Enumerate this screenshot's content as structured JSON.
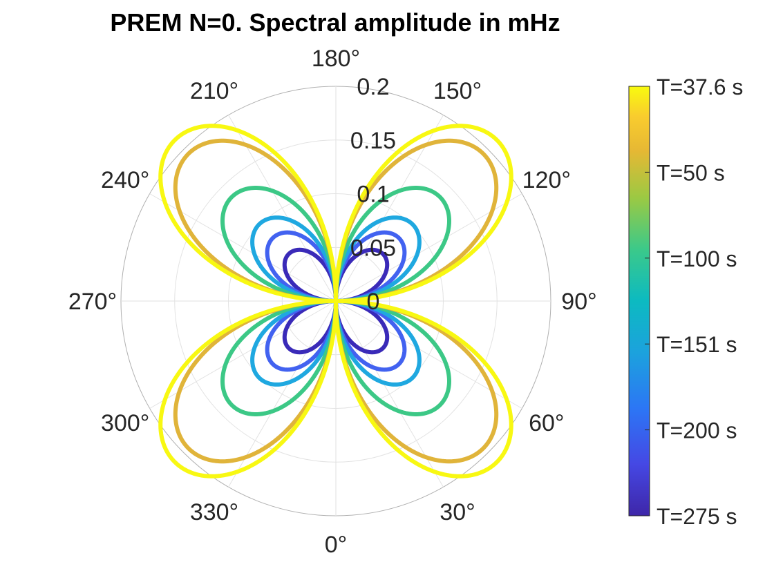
{
  "chart_data": {
    "type": "polar-line",
    "title": "PREM N=0. Spectral amplitude in mHz",
    "theta_direction": "counterclockwise",
    "theta_zero_location": "bottom",
    "theta_ticks": [
      0,
      30,
      60,
      90,
      120,
      150,
      180,
      210,
      240,
      270,
      300,
      330
    ],
    "theta_tick_labels": [
      "0°",
      "30°",
      "60°",
      "90°",
      "120°",
      "150°",
      "180°",
      "210°",
      "240°",
      "270°",
      "300°",
      "330°"
    ],
    "r_lim": [
      0,
      0.2
    ],
    "r_ticks": [
      0,
      0.05,
      0.1,
      0.15,
      0.2
    ],
    "r_tick_labels": [
      "0",
      "0.05",
      "0.1",
      "0.15",
      "0.2"
    ],
    "grid": true,
    "pattern": "amplitude * |sin(2θ)|",
    "series": [
      {
        "name": "T=275 s",
        "period_s": 275,
        "amplitude": 0.062,
        "color": "#3a2ab8"
      },
      {
        "name": "T=200 s",
        "period_s": 200,
        "amplitude": 0.083,
        "color": "#4262f0"
      },
      {
        "name": "T=151 s",
        "period_s": 151,
        "amplitude": 0.101,
        "color": "#1fa8e0"
      },
      {
        "name": "T=100 s",
        "period_s": 100,
        "amplitude": 0.137,
        "color": "#3cc886"
      },
      {
        "name": "T=50 s",
        "period_s": 50,
        "amplitude": 0.194,
        "color": "#e0b43a"
      },
      {
        "name": "T=37.6 s",
        "period_s": 37.6,
        "amplitude": 0.212,
        "color": "#f8f812"
      }
    ],
    "colorbar": {
      "location": "right",
      "tick_labels": [
        "T=37.6 s",
        "T=50 s",
        "T=100 s",
        "T=151 s",
        "T=200 s",
        "T=275 s"
      ],
      "colormap": "parula"
    }
  }
}
